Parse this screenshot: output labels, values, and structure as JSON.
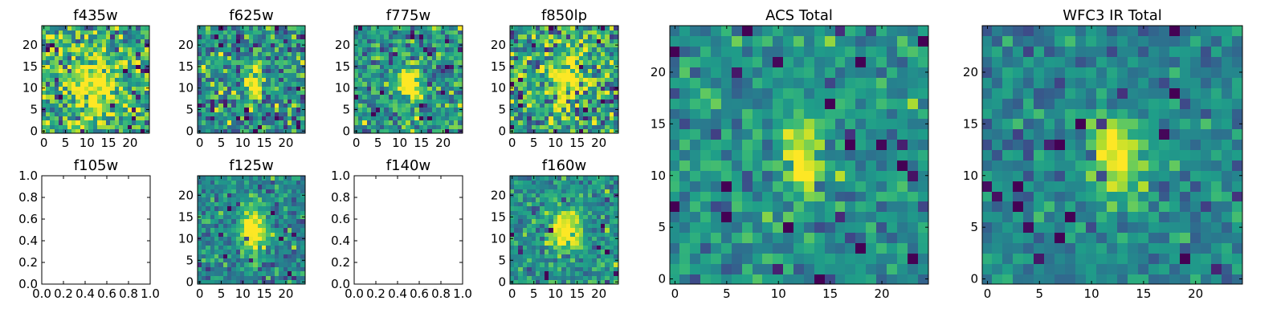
{
  "chart_data": [
    {
      "type": "heatmap",
      "title": "f435w",
      "xticks": [
        "0",
        "5",
        "10",
        "15",
        "20"
      ],
      "yticks": [
        "0",
        "5",
        "10",
        "15",
        "20"
      ],
      "xlim": [
        -0.5,
        24.5
      ],
      "ylim": [
        -0.5,
        24.5
      ],
      "colormap": "viridis",
      "grid": false,
      "source": {
        "r": 2.0,
        "amp": 0.55,
        "base": 0.62,
        "noise": 0.22,
        "cx": 12,
        "cy": 11,
        "sx": 3.5,
        "sy": 4.5
      }
    },
    {
      "type": "heatmap",
      "title": "f625w",
      "xticks": [
        "0",
        "5",
        "10",
        "15",
        "20"
      ],
      "yticks": [
        "0",
        "5",
        "10",
        "15",
        "20"
      ],
      "xlim": [
        -0.5,
        24.5
      ],
      "ylim": [
        -0.5,
        24.5
      ],
      "colormap": "viridis",
      "grid": false,
      "source": {
        "r": 1.8,
        "amp": 0.75,
        "base": 0.5,
        "noise": 0.2,
        "cx": 13,
        "cy": 11,
        "sx": 1.3,
        "sy": 3.0
      }
    },
    {
      "type": "heatmap",
      "title": "f775w",
      "xticks": [
        "0",
        "5",
        "10",
        "15",
        "20"
      ],
      "yticks": [
        "0",
        "5",
        "10",
        "15",
        "20"
      ],
      "xlim": [
        -0.5,
        24.5
      ],
      "ylim": [
        -0.5,
        24.5
      ],
      "colormap": "viridis",
      "grid": false,
      "source": {
        "r": 1.6,
        "amp": 0.85,
        "base": 0.52,
        "noise": 0.18,
        "cx": 12.5,
        "cy": 11,
        "sx": 1.6,
        "sy": 2.6
      }
    },
    {
      "type": "heatmap",
      "title": "f850lp",
      "xticks": [
        "0",
        "5",
        "10",
        "15",
        "20"
      ],
      "yticks": [
        "0",
        "5",
        "10",
        "15",
        "20"
      ],
      "xlim": [
        -0.5,
        24.5
      ],
      "ylim": [
        -0.5,
        24.5
      ],
      "colormap": "viridis",
      "grid": false,
      "source": {
        "r": 2.3,
        "amp": 0.4,
        "base": 0.6,
        "noise": 0.24,
        "cx": 12.5,
        "cy": 12,
        "sx": 2.5,
        "sy": 4.5
      }
    },
    {
      "type": "heatmap",
      "title": "f105w",
      "xticks": [
        "0.0",
        "0.2",
        "0.4",
        "0.6",
        "0.8",
        "1.0"
      ],
      "yticks": [
        "0.0",
        "0.2",
        "0.4",
        "0.6",
        "0.8",
        "1.0"
      ],
      "xlim": [
        0,
        1
      ],
      "ylim": [
        0,
        1
      ],
      "colormap": "viridis",
      "grid": false,
      "empty": true
    },
    {
      "type": "heatmap",
      "title": "f125w",
      "xticks": [
        "0",
        "5",
        "10",
        "15",
        "20"
      ],
      "yticks": [
        "0",
        "5",
        "10",
        "15",
        "20"
      ],
      "xlim": [
        -0.5,
        24.5
      ],
      "ylim": [
        -0.5,
        24.5
      ],
      "colormap": "viridis",
      "grid": false,
      "source": {
        "r": 2.5,
        "amp": 0.7,
        "base": 0.47,
        "noise": 0.13,
        "cx": 12.5,
        "cy": 12,
        "sx": 2.0,
        "sy": 3.5
      }
    },
    {
      "type": "heatmap",
      "title": "f140w",
      "xticks": [
        "0.0",
        "0.2",
        "0.4",
        "0.6",
        "0.8",
        "1.0"
      ],
      "yticks": [
        "0.0",
        "0.2",
        "0.4",
        "0.6",
        "0.8",
        "1.0"
      ],
      "xlim": [
        0,
        1
      ],
      "ylim": [
        0,
        1
      ],
      "colormap": "viridis",
      "grid": false,
      "empty": true
    },
    {
      "type": "heatmap",
      "title": "f160w",
      "xticks": [
        "0",
        "5",
        "10",
        "15",
        "20"
      ],
      "yticks": [
        "0",
        "5",
        "10",
        "15",
        "20"
      ],
      "xlim": [
        -0.5,
        24.5
      ],
      "ylim": [
        -0.5,
        24.5
      ],
      "colormap": "viridis",
      "grid": false,
      "source": {
        "r": 2.9,
        "amp": 0.65,
        "base": 0.5,
        "noise": 0.13,
        "cx": 12.5,
        "cy": 11.5,
        "sx": 2.5,
        "sy": 3.5
      }
    },
    {
      "type": "heatmap",
      "title": "ACS Total",
      "xticks": [
        "0",
        "5",
        "10",
        "15",
        "20"
      ],
      "yticks": [
        "0",
        "5",
        "10",
        "15",
        "20"
      ],
      "xlim": [
        -0.5,
        24.5
      ],
      "ylim": [
        -0.5,
        24.5
      ],
      "colormap": "viridis",
      "grid": false,
      "source": {
        "r": 3.4,
        "amp": 0.6,
        "base": 0.5,
        "noise": 0.12,
        "cx": 12.5,
        "cy": 11.5,
        "sx": 1.2,
        "sy": 2.6
      }
    },
    {
      "type": "heatmap",
      "title": "WFC3 IR Total",
      "xticks": [
        "0",
        "5",
        "10",
        "15",
        "20"
      ],
      "yticks": [
        "0",
        "5",
        "10",
        "15",
        "20"
      ],
      "xlim": [
        -0.5,
        24.5
      ],
      "ylim": [
        -0.5,
        24.5
      ],
      "colormap": "viridis",
      "grid": false,
      "source": {
        "r": 4.1,
        "amp": 0.55,
        "base": 0.45,
        "noise": 0.11,
        "cx": 12.5,
        "cy": 12,
        "sx": 2.0,
        "sy": 2.8
      }
    }
  ]
}
